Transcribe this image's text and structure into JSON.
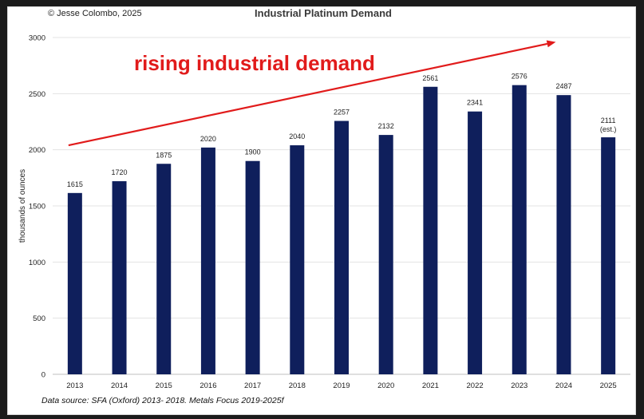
{
  "header": {
    "copyright": "© Jesse Colombo, 2025"
  },
  "chart_data": {
    "type": "bar",
    "title": "Industrial Platinum Demand",
    "ylabel": "thousands of ounces",
    "xlabel": "",
    "ylim": [
      0,
      3000
    ],
    "yticks": [
      0,
      500,
      1000,
      1500,
      2000,
      2500,
      3000
    ],
    "grid": true,
    "categories": [
      "2013",
      "2014",
      "2015",
      "2016",
      "2017",
      "2018",
      "2019",
      "2020",
      "2021",
      "2022",
      "2023",
      "2024",
      "2025"
    ],
    "values": [
      1615,
      1720,
      1875,
      2020,
      1900,
      2040,
      2257,
      2132,
      2561,
      2341,
      2576,
      2487,
      2111
    ],
    "data_labels": [
      "1615",
      "1720",
      "1875",
      "2020",
      "1900",
      "2040",
      "2257",
      "2132",
      "2561",
      "2341",
      "2576",
      "2487",
      "2111"
    ],
    "estimate_note": "(est.)",
    "bar_color": "#0f1f5c",
    "annotation": {
      "text": "rising industrial demand",
      "color": "#e11b1b",
      "arrow_from": {
        "x": "2013",
        "y": 2040
      },
      "arrow_to": {
        "x": "2024",
        "y": 2960
      }
    },
    "source": "Data source: SFA (Oxford) 2013- 2018. Metals Focus 2019-2025f"
  }
}
